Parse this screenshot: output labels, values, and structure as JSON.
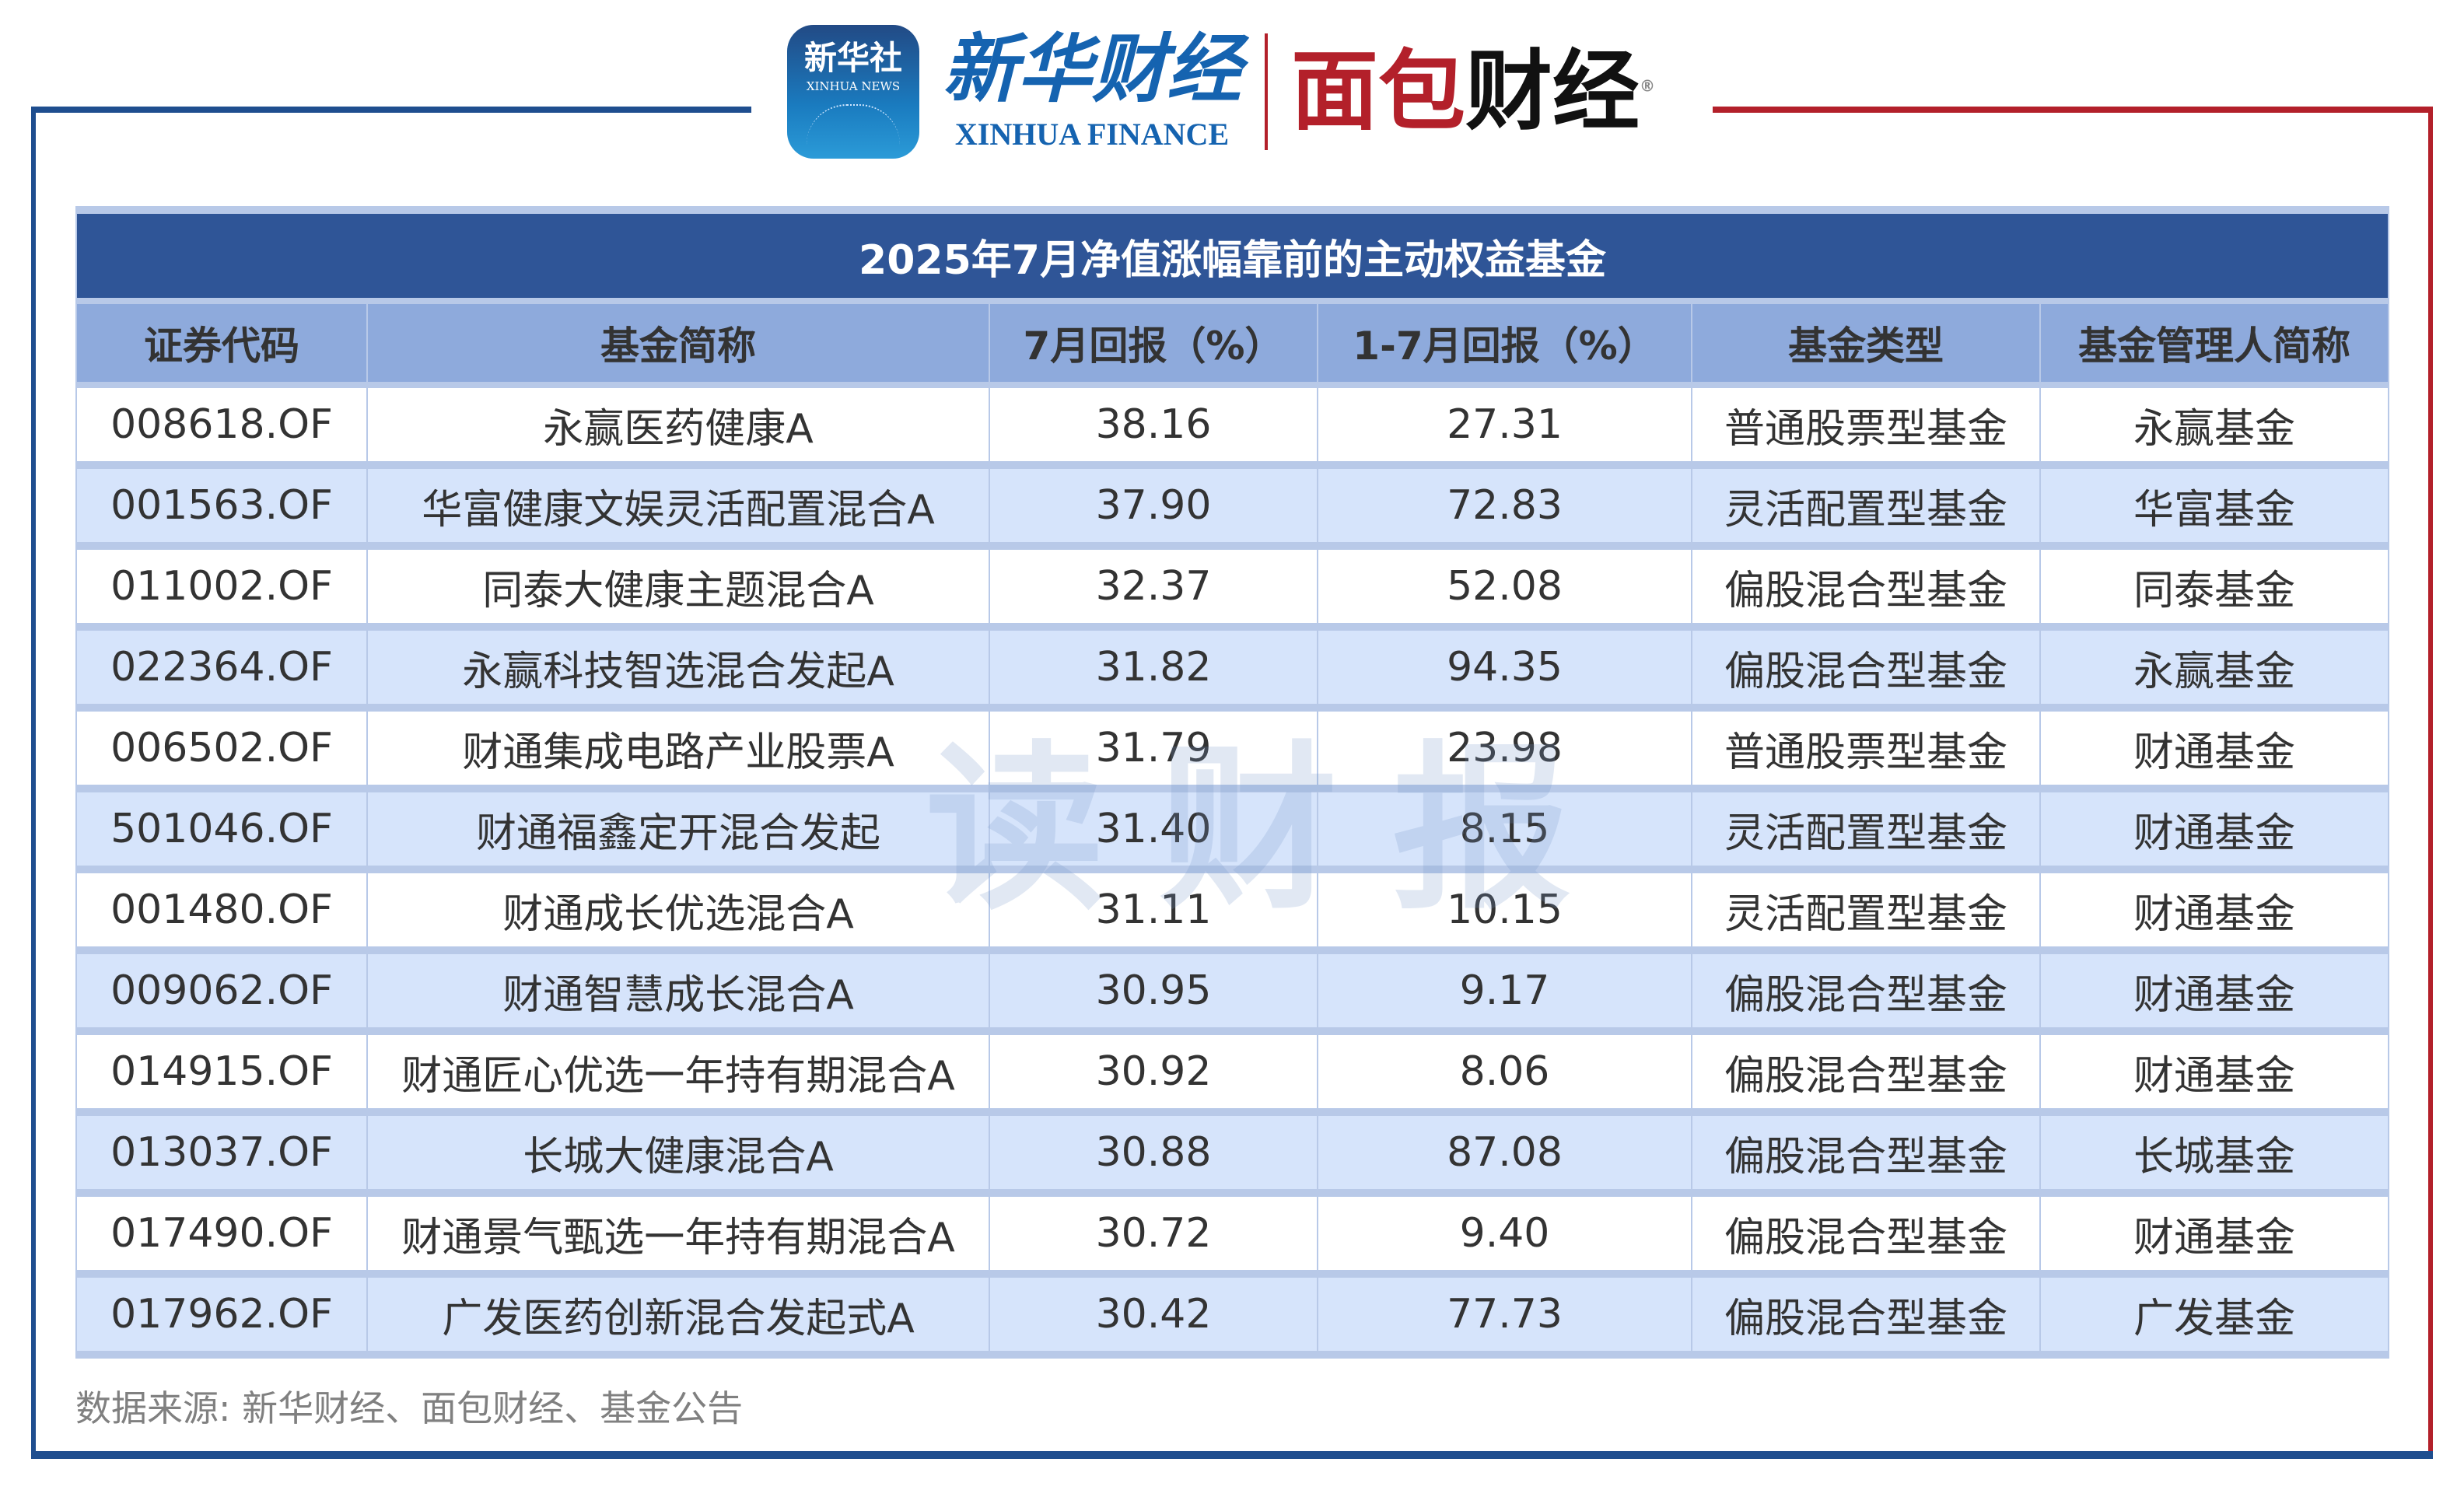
{
  "logos": {
    "xinhua_news_cn": "新华社",
    "xinhua_news_en": "XINHUA NEWS",
    "xinhua_finance_cn": "新华财经",
    "xinhua_finance_en": "XINHUA FINANCE",
    "mianbao_cn_red": "面包",
    "mianbao_cn_black": "财经",
    "registered_mark": "®"
  },
  "table": {
    "title": "2025年7月净值涨幅靠前的主动权益基金",
    "columns": [
      "证券代码",
      "基金简称",
      "7月回报（%）",
      "1-7月回报（%）",
      "基金类型",
      "基金管理人简称"
    ],
    "rows": [
      [
        "008618.OF",
        "永赢医药健康A",
        "38.16",
        "27.31",
        "普通股票型基金",
        "永赢基金"
      ],
      [
        "001563.OF",
        "华富健康文娱灵活配置混合A",
        "37.90",
        "72.83",
        "灵活配置型基金",
        "华富基金"
      ],
      [
        "011002.OF",
        "同泰大健康主题混合A",
        "32.37",
        "52.08",
        "偏股混合型基金",
        "同泰基金"
      ],
      [
        "022364.OF",
        "永赢科技智选混合发起A",
        "31.82",
        "94.35",
        "偏股混合型基金",
        "永赢基金"
      ],
      [
        "006502.OF",
        "财通集成电路产业股票A",
        "31.79",
        "23.98",
        "普通股票型基金",
        "财通基金"
      ],
      [
        "501046.OF",
        "财通福鑫定开混合发起",
        "31.40",
        "8.15",
        "灵活配置型基金",
        "财通基金"
      ],
      [
        "001480.OF",
        "财通成长优选混合A",
        "31.11",
        "10.15",
        "灵活配置型基金",
        "财通基金"
      ],
      [
        "009062.OF",
        "财通智慧成长混合A",
        "30.95",
        "9.17",
        "偏股混合型基金",
        "财通基金"
      ],
      [
        "014915.OF",
        "财通匠心优选一年持有期混合A",
        "30.92",
        "8.06",
        "偏股混合型基金",
        "财通基金"
      ],
      [
        "013037.OF",
        "长城大健康混合A",
        "30.88",
        "87.08",
        "偏股混合型基金",
        "长城基金"
      ],
      [
        "017490.OF",
        "财通景气甄选一年持有期混合A",
        "30.72",
        "9.40",
        "偏股混合型基金",
        "财通基金"
      ],
      [
        "017962.OF",
        "广发医药创新混合发起式A",
        "30.42",
        "77.73",
        "偏股混合型基金",
        "广发基金"
      ]
    ]
  },
  "watermark": "读财报",
  "source": "数据来源: 新华财经、面包财经、基金公告",
  "colors": {
    "title_bg": "#2f5597",
    "header_bg": "#8eaadc",
    "alt_row_bg": "#d6e4fb",
    "frame_blue": "#1f4e8f",
    "frame_red": "#b3202a"
  }
}
